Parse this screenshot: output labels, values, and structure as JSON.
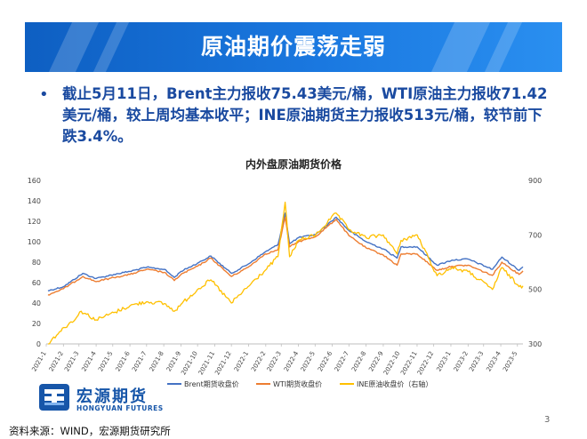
{
  "slide": {
    "title": "原油期价震荡走弱",
    "bullet": "截止5月11日，Brent主力报收75.43美元/桶，WTI原油主力报收71.42美元/桶，较上周均基本收平；INE原油期货主力报收513元/桶，较节前下跌3.4%。",
    "source": "资料来源：WIND，宏源期货研究所",
    "page_number": "3"
  },
  "logo": {
    "name_cn": "宏源期货",
    "name_en": "HONGYUAN FUTURES"
  },
  "colors": {
    "banner": "#1466d0",
    "bullet_text": "#1a4aa0",
    "brent": "#4472c4",
    "wti": "#ed7d31",
    "ine": "#ffc000"
  },
  "chart_data": {
    "type": "line",
    "title": "内外盘原油期货价格",
    "left_axis": {
      "ylim": [
        0,
        160
      ],
      "ticks": [
        "0",
        "20",
        "40",
        "60",
        "80",
        "100",
        "120",
        "140",
        "160"
      ]
    },
    "right_axis": {
      "ylim": [
        300,
        900
      ],
      "ticks": [
        "300",
        "500",
        "700",
        "900"
      ],
      "label": "右轴"
    },
    "x_ticks": [
      "2021-1",
      "2021-2",
      "2021-3",
      "2021-4",
      "2021-5",
      "2021-6",
      "2021-7",
      "2021-8",
      "2021-9",
      "2021-10",
      "2021-11",
      "2021-12",
      "2022-1",
      "2022-2",
      "2022-3",
      "2022-4",
      "2022-5",
      "2022-6",
      "2022-7",
      "2022-8",
      "2022-9",
      "2022-10",
      "2022-11",
      "2022-12",
      "2023-1",
      "2023-2",
      "2023-3",
      "2023-4",
      "2023-5"
    ],
    "x_range": [
      "2021-01-01",
      "2023-05-11"
    ],
    "grid": false,
    "legend_position": "bottom",
    "series": [
      {
        "name": "Brent期货收盘价",
        "axis": "left",
        "points": [
          [
            "2021-01-04",
            52
          ],
          [
            "2021-02-01",
            56
          ],
          [
            "2021-03-08",
            69
          ],
          [
            "2021-04-01",
            64
          ],
          [
            "2021-05-03",
            68
          ],
          [
            "2021-06-01",
            71
          ],
          [
            "2021-07-01",
            75
          ],
          [
            "2021-08-02",
            73
          ],
          [
            "2021-08-20",
            65
          ],
          [
            "2021-09-01",
            71
          ],
          [
            "2021-10-01",
            79
          ],
          [
            "2021-10-25",
            86
          ],
          [
            "2021-12-01",
            69
          ],
          [
            "2021-12-31",
            78
          ],
          [
            "2022-01-31",
            90
          ],
          [
            "2022-02-23",
            97
          ],
          [
            "2022-03-08",
            128
          ],
          [
            "2022-03-16",
            98
          ],
          [
            "2022-04-01",
            104
          ],
          [
            "2022-05-02",
            107
          ],
          [
            "2022-06-08",
            124
          ],
          [
            "2022-07-01",
            111
          ],
          [
            "2022-08-01",
            100
          ],
          [
            "2022-09-01",
            93
          ],
          [
            "2022-09-26",
            84
          ],
          [
            "2022-10-03",
            95
          ],
          [
            "2022-11-01",
            95
          ],
          [
            "2022-12-07",
            77
          ],
          [
            "2023-01-03",
            82
          ],
          [
            "2023-02-01",
            83
          ],
          [
            "2023-03-17",
            73
          ],
          [
            "2023-04-03",
            85
          ],
          [
            "2023-05-04",
            72
          ],
          [
            "2023-05-11",
            75.43
          ]
        ]
      },
      {
        "name": "WTI期货收盘价",
        "axis": "left",
        "points": [
          [
            "2021-01-04",
            48
          ],
          [
            "2021-02-01",
            54
          ],
          [
            "2021-03-08",
            66
          ],
          [
            "2021-04-01",
            61
          ],
          [
            "2021-05-03",
            65
          ],
          [
            "2021-06-01",
            68
          ],
          [
            "2021-07-01",
            73
          ],
          [
            "2021-08-02",
            70
          ],
          [
            "2021-08-20",
            62
          ],
          [
            "2021-09-01",
            68
          ],
          [
            "2021-10-01",
            76
          ],
          [
            "2021-10-25",
            84
          ],
          [
            "2021-12-01",
            66
          ],
          [
            "2021-12-31",
            75
          ],
          [
            "2022-01-31",
            88
          ],
          [
            "2022-02-23",
            92
          ],
          [
            "2022-03-08",
            124
          ],
          [
            "2022-03-16",
            95
          ],
          [
            "2022-04-01",
            100
          ],
          [
            "2022-05-02",
            105
          ],
          [
            "2022-06-08",
            122
          ],
          [
            "2022-07-01",
            106
          ],
          [
            "2022-08-01",
            94
          ],
          [
            "2022-09-01",
            87
          ],
          [
            "2022-09-26",
            77
          ],
          [
            "2022-10-03",
            88
          ],
          [
            "2022-11-01",
            88
          ],
          [
            "2022-12-07",
            72
          ],
          [
            "2023-01-03",
            76
          ],
          [
            "2023-02-01",
            77
          ],
          [
            "2023-03-17",
            67
          ],
          [
            "2023-04-03",
            80
          ],
          [
            "2023-05-04",
            68
          ],
          [
            "2023-05-11",
            71.42
          ]
        ]
      },
      {
        "name": "INE原油收盘价（右轴）",
        "axis": "right",
        "points": [
          [
            "2021-01-04",
            300
          ],
          [
            "2021-01-25",
            345
          ],
          [
            "2021-02-25",
            398
          ],
          [
            "2021-03-05",
            420
          ],
          [
            "2021-04-01",
            388
          ],
          [
            "2021-05-03",
            415
          ],
          [
            "2021-06-01",
            440
          ],
          [
            "2021-07-01",
            455
          ],
          [
            "2021-08-02",
            448
          ],
          [
            "2021-08-20",
            420
          ],
          [
            "2021-09-01",
            445
          ],
          [
            "2021-10-01",
            500
          ],
          [
            "2021-10-25",
            535
          ],
          [
            "2021-12-01",
            450
          ],
          [
            "2021-12-31",
            510
          ],
          [
            "2022-01-31",
            570
          ],
          [
            "2022-02-23",
            620
          ],
          [
            "2022-03-08",
            820
          ],
          [
            "2022-03-16",
            620
          ],
          [
            "2022-04-01",
            680
          ],
          [
            "2022-05-02",
            700
          ],
          [
            "2022-06-08",
            780
          ],
          [
            "2022-07-01",
            720
          ],
          [
            "2022-08-01",
            690
          ],
          [
            "2022-09-01",
            700
          ],
          [
            "2022-09-26",
            630
          ],
          [
            "2022-10-03",
            680
          ],
          [
            "2022-11-01",
            700
          ],
          [
            "2022-12-07",
            550
          ],
          [
            "2023-01-03",
            580
          ],
          [
            "2023-02-01",
            565
          ],
          [
            "2023-03-17",
            500
          ],
          [
            "2023-04-03",
            580
          ],
          [
            "2023-05-04",
            510
          ],
          [
            "2023-05-11",
            513
          ]
        ]
      }
    ]
  }
}
